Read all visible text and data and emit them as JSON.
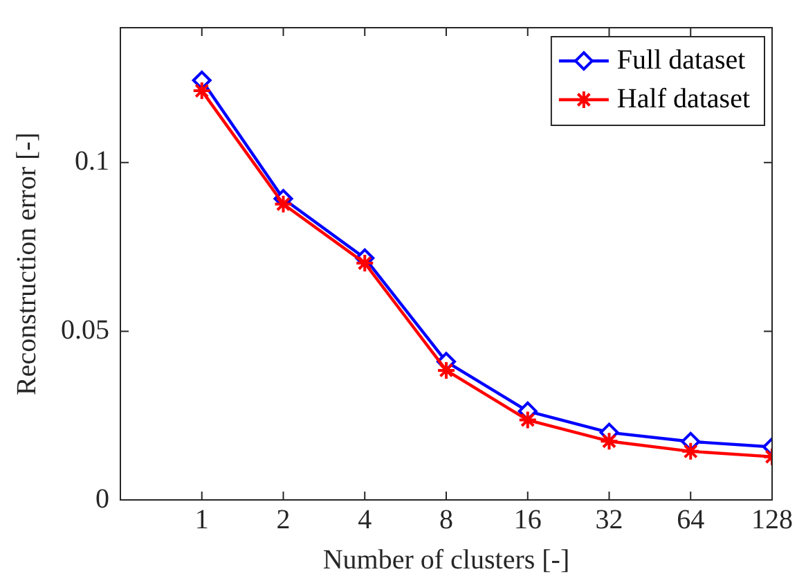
{
  "chart_data": {
    "type": "line",
    "xlabel": "Number of clusters [-]",
    "ylabel": "Reconstruction error [-]",
    "log": "x",
    "x": [
      1,
      2,
      4,
      8,
      16,
      32,
      64,
      128
    ],
    "xlim": [
      0.5,
      128
    ],
    "xticks": [
      1,
      2,
      4,
      8,
      16,
      32,
      64,
      128
    ],
    "ylim": [
      0,
      0.14
    ],
    "yticks": [
      0,
      0.05,
      {
        "value": 0.1,
        "label": "0.1"
      }
    ],
    "grid": false,
    "legend": "top right",
    "line_style": "solid",
    "series": [
      {
        "name": "Full dataset",
        "color": "#0000ff",
        "marker": "diamond",
        "values": [
          0.1244,
          0.0893,
          0.0717,
          0.041,
          0.0263,
          0.02,
          0.0173,
          0.0157
        ]
      },
      {
        "name": "Half dataset",
        "color": "#ff0000",
        "marker": "cross",
        "values": [
          0.1213,
          0.0877,
          0.0702,
          0.0384,
          0.0237,
          0.0174,
          0.0144,
          0.0128
        ]
      }
    ]
  }
}
